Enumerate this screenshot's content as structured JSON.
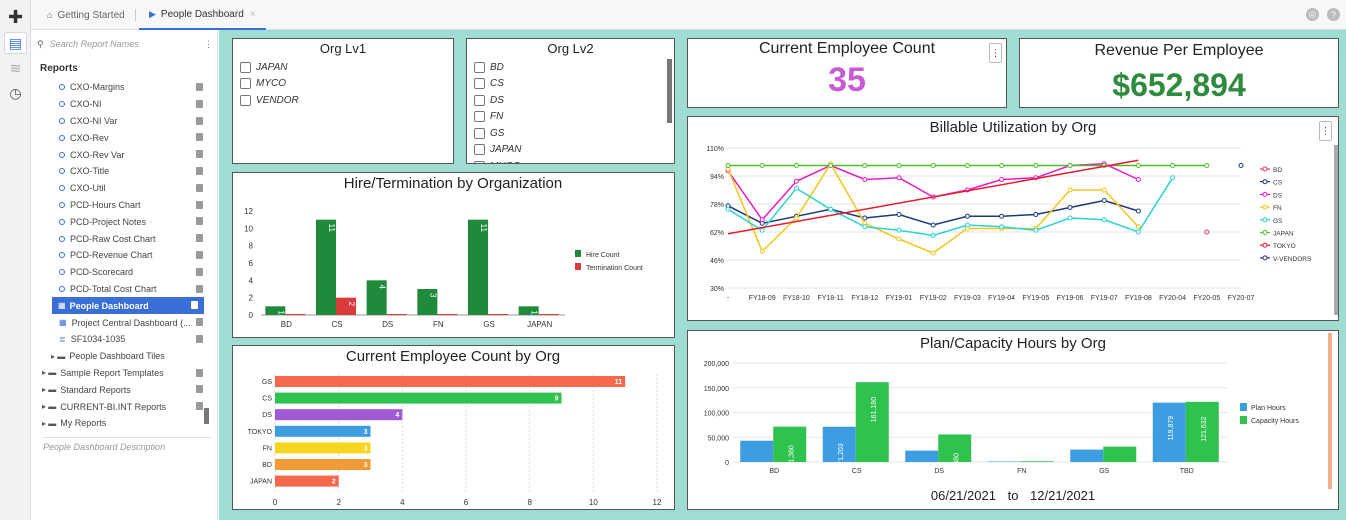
{
  "tabs": [
    {
      "label": "Getting Started"
    },
    {
      "label": "People Dashboard"
    }
  ],
  "sidebar": {
    "search_placeholder": "Search Report Names.",
    "section_title": "Reports",
    "items": [
      {
        "label": "CXO-Margins"
      },
      {
        "label": "CXO-NI"
      },
      {
        "label": "CXO-NI Var"
      },
      {
        "label": "CXO-Rev"
      },
      {
        "label": "CXO-Rev Var"
      },
      {
        "label": "CXO-Title"
      },
      {
        "label": "CXO-Util"
      },
      {
        "label": "PCD-Hours Chart"
      },
      {
        "label": "PCD-Project Notes"
      },
      {
        "label": "PCD-Raw Cost Chart"
      },
      {
        "label": "PCD-Revenue Chart"
      },
      {
        "label": "PCD-Scorecard"
      },
      {
        "label": "PCD-Total Cost Chart"
      }
    ],
    "selected": "People Dashboard",
    "after": [
      {
        "label": "Project Central Dashboard (..."
      },
      {
        "label": "SF1034-1035"
      }
    ],
    "folders": [
      {
        "label": "People Dashboard Tiles"
      },
      {
        "label": "Sample Report Templates"
      },
      {
        "label": "Standard Reports"
      },
      {
        "label": "CURRENT-BI.INT Reports"
      },
      {
        "label": "My Reports"
      }
    ],
    "description": "People Dashboard Description"
  },
  "filters": {
    "orglv1": {
      "title": "Org Lv1",
      "options": [
        "JAPAN",
        "MYCO",
        "VENDOR"
      ]
    },
    "orglv2": {
      "title": "Org Lv2",
      "options": [
        "BD",
        "CS",
        "DS",
        "FN",
        "GS",
        "JAPAN",
        "MUCO"
      ]
    }
  },
  "kpi": {
    "employee_count": {
      "title": "Current Employee Count",
      "value": "35",
      "color": "#c85ad6"
    },
    "revenue": {
      "title": "Revenue Per Employee",
      "value": "$652,894",
      "color": "#2e8b3d"
    }
  },
  "date_range": {
    "start": "06/21/2021",
    "sep": "to",
    "end": "12/21/2021"
  },
  "chart_data": [
    {
      "type": "bar",
      "title": "Hire/Termination by Organization",
      "categories": [
        "BD",
        "CS",
        "DS",
        "FN",
        "GS",
        "JAPAN"
      ],
      "series": [
        {
          "name": "Hire Count",
          "color": "#1e8a3a",
          "values": [
            1,
            11,
            4,
            3,
            11,
            1
          ]
        },
        {
          "name": "Termination Count",
          "color": "#d93b3b",
          "values": [
            0,
            2,
            0,
            0,
            0,
            0
          ]
        }
      ],
      "yticks": [
        0,
        2,
        4,
        6,
        8,
        10,
        12
      ],
      "ylim": [
        0,
        12
      ]
    },
    {
      "type": "bar",
      "orientation": "horizontal",
      "title": "Current Employee Count by Org",
      "categories": [
        "GS",
        "CS",
        "DS",
        "TOKYO",
        "FN",
        "BD",
        "JAPAN"
      ],
      "values": [
        11,
        9,
        4,
        3,
        3,
        3,
        2
      ],
      "colors": [
        "#f4694c",
        "#2fc24e",
        "#a05ad6",
        "#3d9de0",
        "#f5d51e",
        "#f29a35",
        "#f4694c"
      ],
      "xticks": [
        0,
        2,
        4,
        6,
        8,
        10,
        12
      ],
      "xlim": [
        0,
        12
      ]
    },
    {
      "type": "line",
      "title": "Billable Utilization by Org",
      "x": [
        "-",
        "FY18-09",
        "FY18-10",
        "FY18-11",
        "FY18-12",
        "FY19-01",
        "FY19-02",
        "FY19-03",
        "FY19-04",
        "FY19-05",
        "FY19-06",
        "FY19-07",
        "FY19-08",
        "FY20-04",
        "FY20-05",
        "FY20-07"
      ],
      "yticks": [
        "110%",
        "94%",
        "78%",
        "62%",
        "46%",
        "30%"
      ],
      "ylim": [
        30,
        110
      ],
      "series": [
        {
          "name": "BD",
          "color": "#e8335f",
          "values": [
            null,
            null,
            null,
            null,
            null,
            null,
            null,
            null,
            null,
            null,
            null,
            null,
            null,
            null,
            62,
            null
          ]
        },
        {
          "name": "CS",
          "color": "#1a3a7a",
          "values": [
            77,
            67,
            71,
            75,
            70,
            72,
            66,
            71,
            71,
            72,
            76,
            80,
            74,
            null,
            null,
            100
          ]
        },
        {
          "name": "DS",
          "color": "#e81ac8",
          "values": [
            97,
            69,
            91,
            100,
            92,
            93,
            82,
            86,
            92,
            93,
            100,
            101,
            92,
            null,
            null,
            null
          ]
        },
        {
          "name": "FN",
          "color": "#f5c518",
          "values": [
            98,
            51,
            70,
            101,
            67,
            58,
            50,
            64,
            64,
            64,
            86,
            86,
            65,
            null,
            null,
            null
          ]
        },
        {
          "name": "GS",
          "color": "#2cd3d3",
          "values": [
            75,
            63,
            87,
            75,
            65,
            63,
            60,
            66,
            65,
            63,
            70,
            69,
            62,
            93,
            null,
            null
          ]
        },
        {
          "name": "JAPAN",
          "color": "#4cc02a",
          "values": [
            100,
            100,
            100,
            100,
            100,
            100,
            100,
            100,
            100,
            100,
            100,
            100,
            100,
            100,
            100,
            null
          ]
        },
        {
          "name": "TOKYO",
          "color": "#e81a2a",
          "values": [
            61,
            64,
            68,
            72,
            75,
            78,
            82,
            86,
            90,
            94,
            98,
            102,
            103,
            null,
            null,
            null
          ]
        },
        {
          "name": "V-VENDORS",
          "color": "#1a3a7a",
          "values": [
            null,
            null,
            null,
            null,
            null,
            null,
            null,
            null,
            null,
            null,
            null,
            null,
            null,
            null,
            null,
            null
          ]
        }
      ]
    },
    {
      "type": "bar",
      "title": "Plan/Capacity Hours by Org",
      "categories": [
        "BD",
        "CS",
        "DS",
        "FN",
        "GS",
        "TBD"
      ],
      "yticks": [
        "0",
        "50,000",
        "100,000",
        "150,000",
        "200,000"
      ],
      "ylim": [
        0,
        200000
      ],
      "series": [
        {
          "name": "Plan Hours",
          "color": "#3d9de0",
          "values": [
            43000,
            71203,
            23000,
            1000,
            25000,
            119879
          ]
        },
        {
          "name": "Capacity Hours",
          "color": "#2fc24e",
          "values": [
            71360,
            161180,
            55680,
            1500,
            31000,
            121632
          ]
        }
      ],
      "labels": {
        "plan": [
          "",
          "71,203",
          "",
          "",
          "",
          "119,879"
        ],
        "capacity": [
          "71,360",
          "161,180",
          "55,680",
          "",
          "",
          "121,632"
        ]
      }
    }
  ]
}
